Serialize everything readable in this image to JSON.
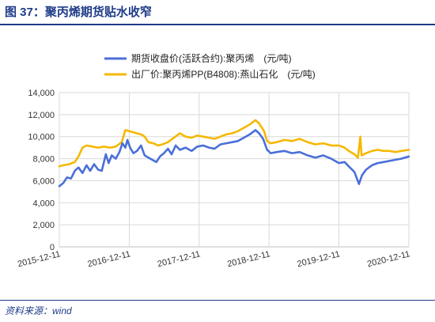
{
  "figure": {
    "title": "图 37：聚丙烯期货贴水收窄",
    "source": "资料来源：wind"
  },
  "chart_data": {
    "type": "line",
    "title": "",
    "xlabel": "",
    "ylabel": "",
    "ylim": [
      0,
      14000
    ],
    "yticks": [
      "0",
      "2,000",
      "4,000",
      "6,000",
      "8,000",
      "10,000",
      "12,000",
      "14,000"
    ],
    "xlim": [
      "2015-12-11",
      "2020-12-11"
    ],
    "xticks": [
      "2015-12-11",
      "2016-12-11",
      "2017-12-11",
      "2018-12-11",
      "2019-12-11",
      "2020-12-11"
    ],
    "grid": true,
    "legend": "top",
    "series": [
      {
        "name": "期货收盘价(活跃合约):聚丙烯　(元/吨)",
        "color": "#4a6fd8",
        "points": [
          [
            "2015-12-11",
            5500
          ],
          [
            "2016-01-01",
            5800
          ],
          [
            "2016-01-20",
            6300
          ],
          [
            "2016-02-10",
            6200
          ],
          [
            "2016-03-01",
            6900
          ],
          [
            "2016-03-20",
            7200
          ],
          [
            "2016-04-10",
            6700
          ],
          [
            "2016-05-01",
            7400
          ],
          [
            "2016-05-20",
            6900
          ],
          [
            "2016-06-10",
            7500
          ],
          [
            "2016-07-01",
            7000
          ],
          [
            "2016-07-20",
            6900
          ],
          [
            "2016-08-10",
            8400
          ],
          [
            "2016-08-25",
            7600
          ],
          [
            "2016-09-10",
            8300
          ],
          [
            "2016-10-01",
            8000
          ],
          [
            "2016-10-20",
            8600
          ],
          [
            "2016-11-05",
            9400
          ],
          [
            "2016-11-20",
            9000
          ],
          [
            "2016-12-01",
            9700
          ],
          [
            "2016-12-15",
            9000
          ],
          [
            "2017-01-01",
            8500
          ],
          [
            "2017-01-20",
            8700
          ],
          [
            "2017-02-10",
            9200
          ],
          [
            "2017-03-01",
            8300
          ],
          [
            "2017-03-20",
            8100
          ],
          [
            "2017-04-10",
            7900
          ],
          [
            "2017-05-01",
            7700
          ],
          [
            "2017-05-20",
            8200
          ],
          [
            "2017-06-10",
            8500
          ],
          [
            "2017-07-01",
            8900
          ],
          [
            "2017-07-20",
            8400
          ],
          [
            "2017-08-10",
            9200
          ],
          [
            "2017-09-01",
            8800
          ],
          [
            "2017-10-01",
            9000
          ],
          [
            "2017-11-01",
            8700
          ],
          [
            "2017-12-01",
            9100
          ],
          [
            "2018-01-01",
            9200
          ],
          [
            "2018-02-01",
            9000
          ],
          [
            "2018-03-01",
            8900
          ],
          [
            "2018-04-01",
            9300
          ],
          [
            "2018-05-01",
            9400
          ],
          [
            "2018-06-01",
            9500
          ],
          [
            "2018-07-01",
            9600
          ],
          [
            "2018-08-01",
            9900
          ],
          [
            "2018-09-01",
            10200
          ],
          [
            "2018-10-01",
            10600
          ],
          [
            "2018-10-20",
            10300
          ],
          [
            "2018-11-10",
            9800
          ],
          [
            "2018-12-01",
            8800
          ],
          [
            "2018-12-20",
            8500
          ],
          [
            "2019-01-20",
            8600
          ],
          [
            "2019-03-01",
            8700
          ],
          [
            "2019-04-10",
            8500
          ],
          [
            "2019-05-20",
            8600
          ],
          [
            "2019-07-01",
            8300
          ],
          [
            "2019-08-10",
            8100
          ],
          [
            "2019-09-20",
            8300
          ],
          [
            "2019-11-01",
            8000
          ],
          [
            "2019-12-11",
            7600
          ],
          [
            "2020-01-10",
            7700
          ],
          [
            "2020-02-01",
            7300
          ],
          [
            "2020-03-01",
            6800
          ],
          [
            "2020-03-25",
            5700
          ],
          [
            "2020-04-10",
            6500
          ],
          [
            "2020-05-01",
            7000
          ],
          [
            "2020-06-01",
            7400
          ],
          [
            "2020-07-01",
            7600
          ],
          [
            "2020-08-01",
            7700
          ],
          [
            "2020-09-01",
            7800
          ],
          [
            "2020-10-01",
            7900
          ],
          [
            "2020-11-01",
            8000
          ],
          [
            "2020-12-11",
            8200
          ]
        ]
      },
      {
        "name": "出厂价:聚丙烯PP(B4808):燕山石化　(元/吨)",
        "color": "#f5b800",
        "points": [
          [
            "2015-12-11",
            7300
          ],
          [
            "2016-01-01",
            7400
          ],
          [
            "2016-02-01",
            7500
          ],
          [
            "2016-03-01",
            7700
          ],
          [
            "2016-03-20",
            8200
          ],
          [
            "2016-04-10",
            9000
          ],
          [
            "2016-05-01",
            9200
          ],
          [
            "2016-06-01",
            9100
          ],
          [
            "2016-07-01",
            9000
          ],
          [
            "2016-08-01",
            9100
          ],
          [
            "2016-09-01",
            9000
          ],
          [
            "2016-10-01",
            9100
          ],
          [
            "2016-11-01",
            9500
          ],
          [
            "2016-11-20",
            10600
          ],
          [
            "2016-12-10",
            10500
          ],
          [
            "2017-01-01",
            10400
          ],
          [
            "2017-01-20",
            10300
          ],
          [
            "2017-02-10",
            10200
          ],
          [
            "2017-03-01",
            10000
          ],
          [
            "2017-03-20",
            9500
          ],
          [
            "2017-04-15",
            9400
          ],
          [
            "2017-05-10",
            9200
          ],
          [
            "2017-06-01",
            9300
          ],
          [
            "2017-07-01",
            9500
          ],
          [
            "2017-08-01",
            9900
          ],
          [
            "2017-09-01",
            10300
          ],
          [
            "2017-10-01",
            10000
          ],
          [
            "2017-11-01",
            9900
          ],
          [
            "2017-12-01",
            10100
          ],
          [
            "2018-01-01",
            10000
          ],
          [
            "2018-02-01",
            9900
          ],
          [
            "2018-03-01",
            9800
          ],
          [
            "2018-04-01",
            10000
          ],
          [
            "2018-05-01",
            10200
          ],
          [
            "2018-06-01",
            10300
          ],
          [
            "2018-07-01",
            10500
          ],
          [
            "2018-08-01",
            10800
          ],
          [
            "2018-09-01",
            11100
          ],
          [
            "2018-10-01",
            11500
          ],
          [
            "2018-10-20",
            11200
          ],
          [
            "2018-11-15",
            10500
          ],
          [
            "2018-12-01",
            9600
          ],
          [
            "2018-12-20",
            9400
          ],
          [
            "2019-01-20",
            9500
          ],
          [
            "2019-03-01",
            9700
          ],
          [
            "2019-04-10",
            9600
          ],
          [
            "2019-05-20",
            9800
          ],
          [
            "2019-07-01",
            9500
          ],
          [
            "2019-08-10",
            9300
          ],
          [
            "2019-09-20",
            9400
          ],
          [
            "2019-11-01",
            9200
          ],
          [
            "2019-12-11",
            9200
          ],
          [
            "2020-01-10",
            9000
          ],
          [
            "2020-02-01",
            8700
          ],
          [
            "2020-03-01",
            8400
          ],
          [
            "2020-03-20",
            8100
          ],
          [
            "2020-04-01",
            10000
          ],
          [
            "2020-04-08",
            8300
          ],
          [
            "2020-05-01",
            8500
          ],
          [
            "2020-06-01",
            8700
          ],
          [
            "2020-07-01",
            8800
          ],
          [
            "2020-08-01",
            8700
          ],
          [
            "2020-09-01",
            8700
          ],
          [
            "2020-10-01",
            8600
          ],
          [
            "2020-11-01",
            8700
          ],
          [
            "2020-12-11",
            8800
          ]
        ]
      }
    ]
  }
}
